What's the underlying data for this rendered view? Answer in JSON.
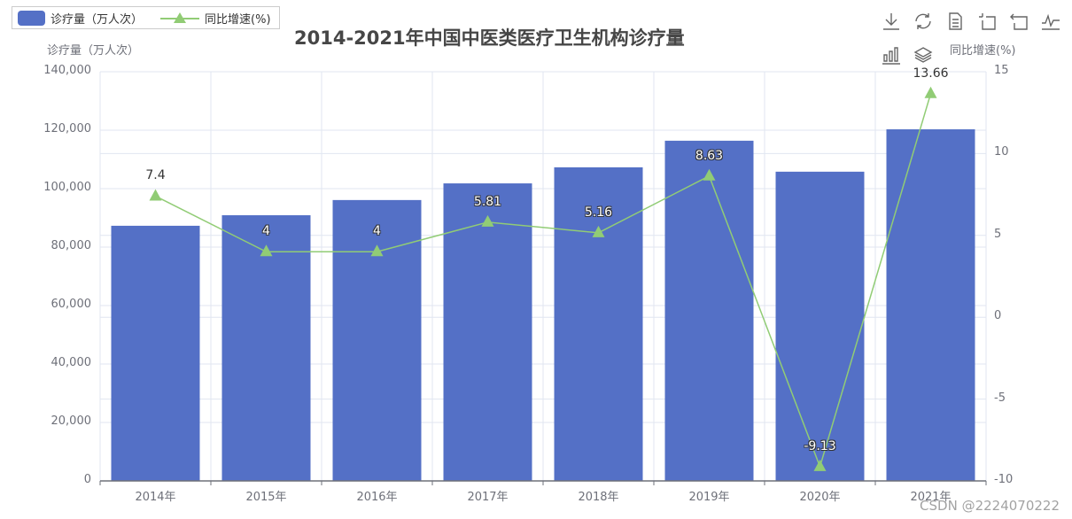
{
  "chart_data": {
    "type": "bar",
    "title": "2014-2021年中国中医类医疗卫生机构诊疗量",
    "categories": [
      "2014年",
      "2015年",
      "2016年",
      "2017年",
      "2018年",
      "2019年",
      "2020年",
      "2021年"
    ],
    "series": [
      {
        "name": "诊疗量（万人次）",
        "type": "bar",
        "yAxis": "left",
        "color": "#5470c6",
        "values": [
          87300,
          90900,
          96100,
          101800,
          107300,
          116400,
          105800,
          120300
        ]
      },
      {
        "name": "同比增速(%)",
        "type": "line",
        "yAxis": "right",
        "color": "#91cc75",
        "symbol": "triangle",
        "values": [
          7.4,
          4,
          4,
          5.81,
          5.16,
          8.63,
          -9.13,
          13.66
        ],
        "labels": [
          "7.4",
          "4",
          "4",
          "5.81",
          "5.16",
          "8.63",
          "-9.13",
          "13.66"
        ]
      }
    ],
    "ylabel": "诊疗量（万人次）",
    "ylabel_right": "同比增速(%)",
    "ylim": [
      0,
      140000
    ],
    "ylim_right": [
      -10,
      15
    ],
    "yticks": [
      "0",
      "20,000",
      "40,000",
      "60,000",
      "80,000",
      "100,000",
      "120,000",
      "140,000"
    ],
    "yticks_right": [
      "-10",
      "-5",
      "0",
      "5",
      "10",
      "15"
    ],
    "grid": true,
    "legend_position": "top-left"
  },
  "legend": {
    "bar_label": "诊疗量（万人次）",
    "line_label": "同比增速(%)"
  },
  "toolbox": [
    "download-icon",
    "refresh-icon",
    "data-view-icon",
    "zoom-icon",
    "zoom-reset-icon",
    "line-chart-icon",
    "bar-chart-icon",
    "stack-icon"
  ],
  "watermark": "CSDN @2224070222"
}
